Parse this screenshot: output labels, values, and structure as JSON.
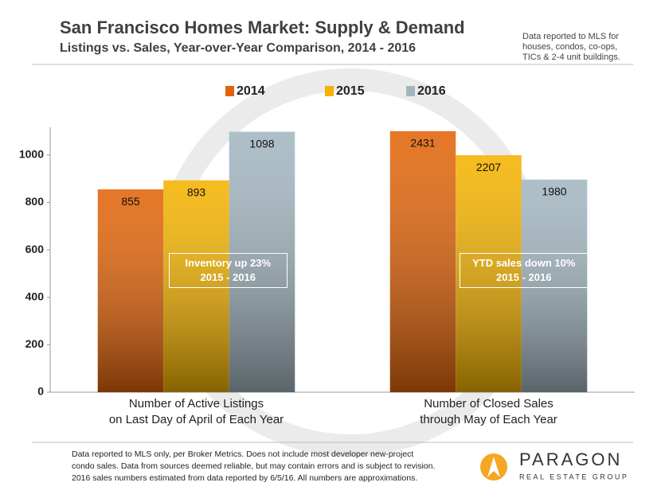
{
  "chart_data": {
    "type": "bar",
    "title": "San Francisco Homes Market: Supply & Demand",
    "subtitle": "Listings vs. Sales, Year-over-Year Comparison, 2014 - 2016",
    "side_note": "Data reported to MLS for\nhouses, condos, co-ops,\nTICs & 2-4 unit buildings.",
    "categories": [
      "Number of Active Listings\non Last Day of April of Each Year",
      "Number of Closed Sales\nthrough May of Each Year"
    ],
    "category_axis": [
      "y",
      "y2"
    ],
    "series": [
      {
        "name": "2014",
        "color": "#e2640a",
        "values": [
          855,
          2431
        ]
      },
      {
        "name": "2015",
        "color": "#f4b300",
        "values": [
          893,
          2207
        ]
      },
      {
        "name": "2016",
        "color": "#a3b6c0",
        "values": [
          1098,
          1980
        ]
      }
    ],
    "ylim": [
      0,
      1100
    ],
    "yticks": [
      0,
      200,
      400,
      600,
      800,
      1000
    ],
    "y2lim": [
      0,
      2430
    ],
    "annotations": [
      "Inventory up 23%\n2015 - 2016",
      "YTD sales down 10%\n2015 - 2016"
    ],
    "footnote": "Data reported to MLS only, per Broker Metrics. Does not include most developer new-project\ncondo sales. Data from sources deemed reliable, but may contain errors and is subject to revision.\n2016 sales numbers estimated from data reported by 6/5/16. All numbers are approximations."
  },
  "logo": {
    "name": "PARAGON",
    "tagline": "REAL ESTATE GROUP"
  }
}
